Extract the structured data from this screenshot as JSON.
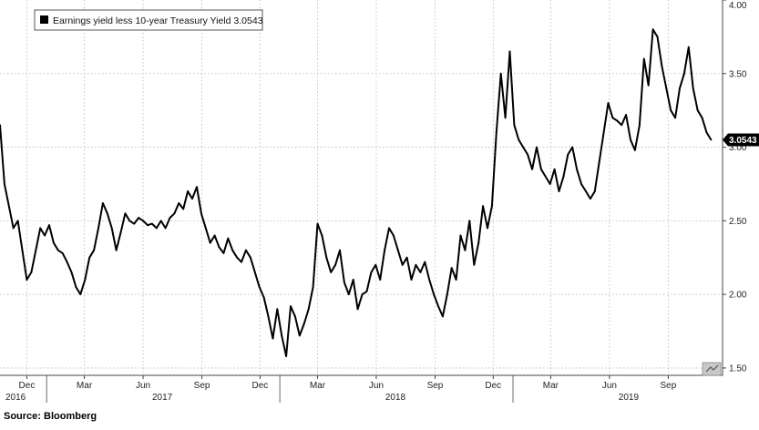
{
  "chart_data": {
    "type": "line",
    "title": "",
    "xlabel": "",
    "ylabel": "",
    "ylim": [
      1.45,
      4.0
    ],
    "y_ticks": [
      1.5,
      2.0,
      2.5,
      3.0,
      3.5,
      4.0
    ],
    "y_tick_labels": [
      "1.50",
      "2.00",
      "2.50",
      "3.00",
      "3.50",
      "4.00"
    ],
    "xlim": [
      "2016-10-20",
      "2019-11-25"
    ],
    "x_ticks": [
      {
        "date": "2016-12-01",
        "label": "Dec"
      },
      {
        "date": "2017-03-01",
        "label": "Mar"
      },
      {
        "date": "2017-06-01",
        "label": "Jun"
      },
      {
        "date": "2017-09-01",
        "label": "Sep"
      },
      {
        "date": "2017-12-01",
        "label": "Dec"
      },
      {
        "date": "2018-03-01",
        "label": "Mar"
      },
      {
        "date": "2018-06-01",
        "label": "Jun"
      },
      {
        "date": "2018-09-01",
        "label": "Sep"
      },
      {
        "date": "2018-12-01",
        "label": "Dec"
      },
      {
        "date": "2019-03-01",
        "label": "Mar"
      },
      {
        "date": "2019-06-01",
        "label": "Jun"
      },
      {
        "date": "2019-09-01",
        "label": "Sep"
      }
    ],
    "year_labels": [
      {
        "label": "2016",
        "date": "2016-10-25"
      },
      {
        "label": "2017",
        "date": "2017-07-01"
      },
      {
        "label": "2018",
        "date": "2018-07-01"
      },
      {
        "label": "2019",
        "date": "2019-07-01"
      }
    ],
    "grid": true,
    "y_axis_side": "right",
    "legend_position": "top-left",
    "series": [
      {
        "name": "Earnings yield less 10-year Treasury Yield 3.0543",
        "color": "#000000",
        "last_value_label": "3.0543",
        "x": [
          "2016-10-20",
          "2016-10-27",
          "2016-11-03",
          "2016-11-10",
          "2016-11-17",
          "2016-11-24",
          "2016-12-01",
          "2016-12-08",
          "2016-12-15",
          "2016-12-22",
          "2016-12-29",
          "2017-01-05",
          "2017-01-12",
          "2017-01-19",
          "2017-01-26",
          "2017-02-02",
          "2017-02-09",
          "2017-02-16",
          "2017-02-23",
          "2017-03-02",
          "2017-03-09",
          "2017-03-16",
          "2017-03-23",
          "2017-03-30",
          "2017-04-06",
          "2017-04-13",
          "2017-04-20",
          "2017-04-27",
          "2017-05-04",
          "2017-05-11",
          "2017-05-18",
          "2017-05-25",
          "2017-06-01",
          "2017-06-08",
          "2017-06-15",
          "2017-06-22",
          "2017-06-29",
          "2017-07-06",
          "2017-07-13",
          "2017-07-20",
          "2017-07-27",
          "2017-08-03",
          "2017-08-10",
          "2017-08-17",
          "2017-08-24",
          "2017-08-31",
          "2017-09-07",
          "2017-09-14",
          "2017-09-21",
          "2017-09-28",
          "2017-10-05",
          "2017-10-12",
          "2017-10-19",
          "2017-10-26",
          "2017-11-02",
          "2017-11-09",
          "2017-11-16",
          "2017-11-23",
          "2017-11-30",
          "2017-12-07",
          "2017-12-14",
          "2017-12-21",
          "2017-12-28",
          "2018-01-04",
          "2018-01-11",
          "2018-01-18",
          "2018-01-25",
          "2018-02-01",
          "2018-02-08",
          "2018-02-15",
          "2018-02-22",
          "2018-03-01",
          "2018-03-08",
          "2018-03-15",
          "2018-03-22",
          "2018-03-29",
          "2018-04-05",
          "2018-04-12",
          "2018-04-19",
          "2018-04-26",
          "2018-05-03",
          "2018-05-10",
          "2018-05-17",
          "2018-05-24",
          "2018-05-31",
          "2018-06-07",
          "2018-06-14",
          "2018-06-21",
          "2018-06-28",
          "2018-07-05",
          "2018-07-12",
          "2018-07-19",
          "2018-07-26",
          "2018-08-02",
          "2018-08-09",
          "2018-08-16",
          "2018-08-23",
          "2018-08-30",
          "2018-09-06",
          "2018-09-13",
          "2018-09-20",
          "2018-09-27",
          "2018-10-04",
          "2018-10-11",
          "2018-10-18",
          "2018-10-25",
          "2018-11-01",
          "2018-11-08",
          "2018-11-15",
          "2018-11-22",
          "2018-11-29",
          "2018-12-06",
          "2018-12-13",
          "2018-12-20",
          "2018-12-27",
          "2019-01-03",
          "2019-01-10",
          "2019-01-17",
          "2019-01-24",
          "2019-01-31",
          "2019-02-07",
          "2019-02-14",
          "2019-02-21",
          "2019-02-28",
          "2019-03-07",
          "2019-03-14",
          "2019-03-21",
          "2019-03-28",
          "2019-04-04",
          "2019-04-11",
          "2019-04-18",
          "2019-04-25",
          "2019-05-02",
          "2019-05-09",
          "2019-05-16",
          "2019-05-23",
          "2019-05-30",
          "2019-06-06",
          "2019-06-13",
          "2019-06-20",
          "2019-06-27",
          "2019-07-04",
          "2019-07-11",
          "2019-07-18",
          "2019-07-25",
          "2019-08-01",
          "2019-08-08",
          "2019-08-15",
          "2019-08-22",
          "2019-08-29",
          "2019-09-05",
          "2019-09-12",
          "2019-09-19",
          "2019-09-26",
          "2019-10-03",
          "2019-10-10",
          "2019-10-17",
          "2019-10-24",
          "2019-10-31",
          "2019-11-07"
        ],
        "values": [
          3.15,
          2.75,
          2.6,
          2.45,
          2.5,
          2.3,
          2.1,
          2.15,
          2.3,
          2.45,
          2.4,
          2.47,
          2.35,
          2.3,
          2.28,
          2.22,
          2.15,
          2.05,
          2.0,
          2.1,
          2.25,
          2.3,
          2.45,
          2.62,
          2.55,
          2.45,
          2.3,
          2.42,
          2.55,
          2.5,
          2.48,
          2.52,
          2.5,
          2.47,
          2.48,
          2.45,
          2.5,
          2.45,
          2.52,
          2.55,
          2.62,
          2.58,
          2.7,
          2.65,
          2.73,
          2.55,
          2.45,
          2.35,
          2.4,
          2.32,
          2.28,
          2.38,
          2.3,
          2.25,
          2.22,
          2.3,
          2.25,
          2.15,
          2.05,
          1.98,
          1.85,
          1.7,
          1.9,
          1.72,
          1.58,
          1.92,
          1.85,
          1.72,
          1.8,
          1.9,
          2.05,
          2.48,
          2.4,
          2.25,
          2.15,
          2.2,
          2.3,
          2.08,
          2.0,
          2.1,
          1.9,
          2.0,
          2.02,
          2.15,
          2.2,
          2.1,
          2.3,
          2.45,
          2.4,
          2.3,
          2.2,
          2.25,
          2.1,
          2.2,
          2.15,
          2.22,
          2.1,
          2.0,
          1.92,
          1.85,
          2.0,
          2.18,
          2.1,
          2.4,
          2.3,
          2.5,
          2.2,
          2.35,
          2.6,
          2.45,
          2.6,
          3.1,
          3.5,
          3.2,
          3.65,
          3.15,
          3.05,
          3.0,
          2.95,
          2.85,
          3.0,
          2.85,
          2.8,
          2.75,
          2.85,
          2.7,
          2.8,
          2.95,
          3.0,
          2.85,
          2.75,
          2.7,
          2.65,
          2.7,
          2.9,
          3.1,
          3.3,
          3.2,
          3.18,
          3.15,
          3.22,
          3.05,
          2.98,
          3.15,
          3.6,
          3.42,
          3.8,
          3.75,
          3.55,
          3.4,
          3.25,
          3.2,
          3.4,
          3.5,
          3.68,
          3.4,
          3.25,
          3.2,
          3.1,
          3.05
        ]
      }
    ]
  },
  "source": "Source: Bloomberg"
}
